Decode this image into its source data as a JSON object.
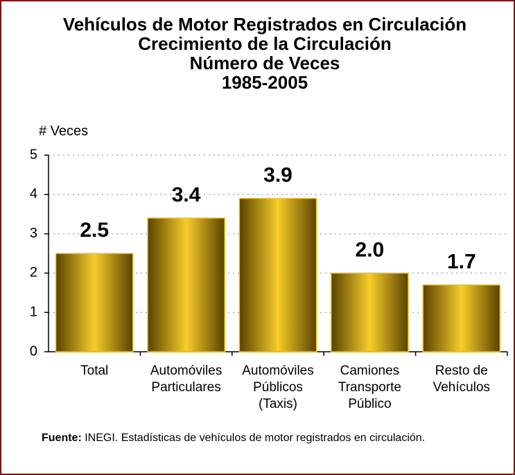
{
  "chart_data": {
    "type": "bar",
    "title": "Vehículos de Motor Registrados en Circulación",
    "subtitle": [
      "Crecimiento de la Circulación",
      "Número de Veces",
      "1985-2005"
    ],
    "y_label": "# Veces",
    "categories": [
      [
        "Total"
      ],
      [
        "Automóviles",
        "Particulares"
      ],
      [
        "Automóviles",
        "Públicos",
        "(Taxis)"
      ],
      [
        "Camiones",
        "Transporte",
        "Público"
      ],
      [
        "Resto de",
        "Vehículos"
      ]
    ],
    "values": [
      2.5,
      3.4,
      3.9,
      2.0,
      1.7
    ],
    "value_labels": [
      "2.5",
      "3.4",
      "3.9",
      "2.0",
      "1.7"
    ],
    "color": "#f2c623",
    "ylim": [
      0,
      5
    ],
    "yticks": [
      0,
      1,
      2,
      3,
      4,
      5
    ],
    "grid": true,
    "source": {
      "label": "Fuente:",
      "text": "INEGI. Estadísticas de vehículos de motor registrados en circulación."
    }
  }
}
